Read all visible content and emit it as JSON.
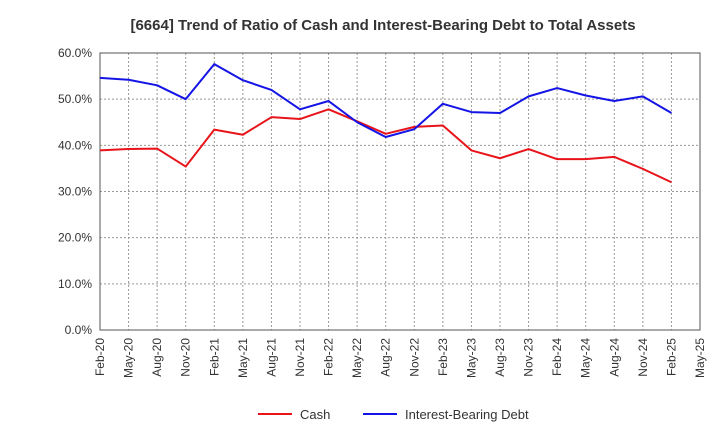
{
  "chart_data": {
    "type": "line",
    "title": "[6664]  Trend of Ratio of Cash and Interest-Bearing Debt to Total Assets",
    "xlabel": "",
    "ylabel": "",
    "ylim": [
      0,
      60
    ],
    "y_ticks": [
      0,
      10,
      20,
      30,
      40,
      50,
      60
    ],
    "y_tick_labels": [
      "0.0%",
      "10.0%",
      "20.0%",
      "30.0%",
      "40.0%",
      "50.0%",
      "60.0%"
    ],
    "categories": [
      "Feb-20",
      "May-20",
      "Aug-20",
      "Nov-20",
      "Feb-21",
      "May-21",
      "Aug-21",
      "Nov-21",
      "Feb-22",
      "May-22",
      "Aug-22",
      "Nov-22",
      "Feb-23",
      "May-23",
      "Aug-23",
      "Nov-23",
      "Feb-24",
      "May-24",
      "Aug-24",
      "Nov-24",
      "Feb-25",
      "May-25"
    ],
    "grid": true,
    "legend_position": "bottom",
    "series": [
      {
        "name": "Cash",
        "color": "#e8141a",
        "values": [
          38.9,
          39.2,
          39.3,
          35.4,
          43.4,
          42.3,
          46.1,
          45.7,
          47.8,
          45.2,
          42.5,
          44.0,
          44.3,
          38.9,
          37.2,
          39.2,
          37.0,
          37.0,
          37.5,
          34.9,
          32.0,
          null
        ]
      },
      {
        "name": "Interest-Bearing Debt",
        "color": "#1414e6",
        "values": [
          54.6,
          54.2,
          53.0,
          50.0,
          57.6,
          54.1,
          52.0,
          47.8,
          49.6,
          45.0,
          41.8,
          43.5,
          49.0,
          47.2,
          47.0,
          50.6,
          52.4,
          50.8,
          49.6,
          50.6,
          47.0,
          null
        ]
      }
    ]
  }
}
